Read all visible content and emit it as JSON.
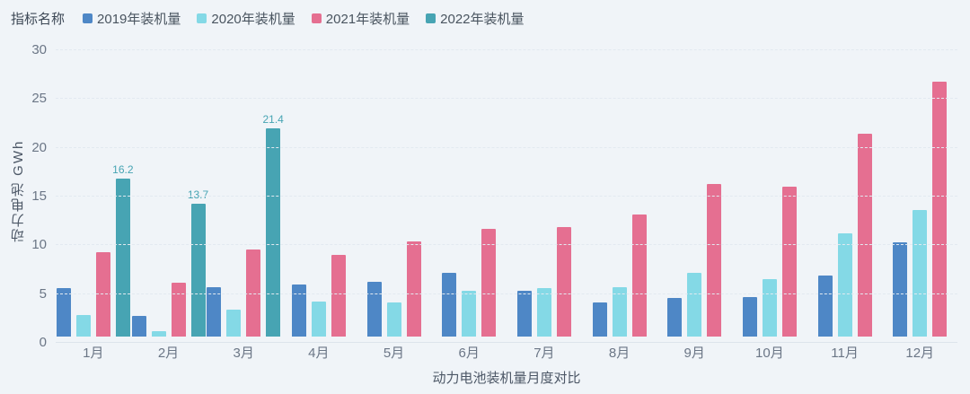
{
  "header": {
    "indicator_label": "指标名称"
  },
  "colors": {
    "background": "#f0f4f8",
    "series_2019": "#4e87c6",
    "series_2020": "#84d9e6",
    "series_2021": "#e56f91",
    "series_2022": "#47a4b3",
    "axis_text": "#6b7686",
    "title_text": "#4c5766",
    "gridline": "#e2e9f0"
  },
  "chart_data": {
    "type": "bar",
    "title": "动力电池装机量月度对比",
    "ylabel": "动力电池 GWh",
    "categories": [
      "1月",
      "2月",
      "3月",
      "4月",
      "5月",
      "6月",
      "7月",
      "8月",
      "9月",
      "10月",
      "11月",
      "12月"
    ],
    "series": [
      {
        "name": "2019年装机量",
        "color": "#4e87c6",
        "values": [
          5.0,
          2.2,
          5.1,
          5.4,
          5.7,
          6.6,
          4.7,
          3.5,
          4.0,
          4.1,
          6.3,
          9.7
        ]
      },
      {
        "name": "2020年装机量",
        "color": "#84d9e6",
        "values": [
          2.3,
          0.6,
          2.8,
          3.6,
          3.5,
          4.7,
          5.0,
          5.1,
          6.6,
          5.9,
          10.6,
          13.0
        ]
      },
      {
        "name": "2021年装机量",
        "color": "#e56f91",
        "values": [
          8.7,
          5.6,
          9.0,
          8.4,
          9.8,
          11.1,
          11.3,
          12.6,
          15.7,
          15.4,
          20.8,
          26.2
        ]
      },
      {
        "name": "2022年装机量",
        "color": "#47a4b3",
        "show_data_labels": true,
        "data_labels": [
          "16.2",
          "13.7",
          "21.4"
        ],
        "values": [
          16.2,
          13.7,
          21.4,
          null,
          null,
          null,
          null,
          null,
          null,
          null,
          null,
          null
        ]
      }
    ],
    "yticks": [
      0,
      5,
      10,
      15,
      20,
      25,
      30
    ],
    "ylim": [
      0,
      30
    ],
    "grid": true,
    "legend_position": "top"
  }
}
